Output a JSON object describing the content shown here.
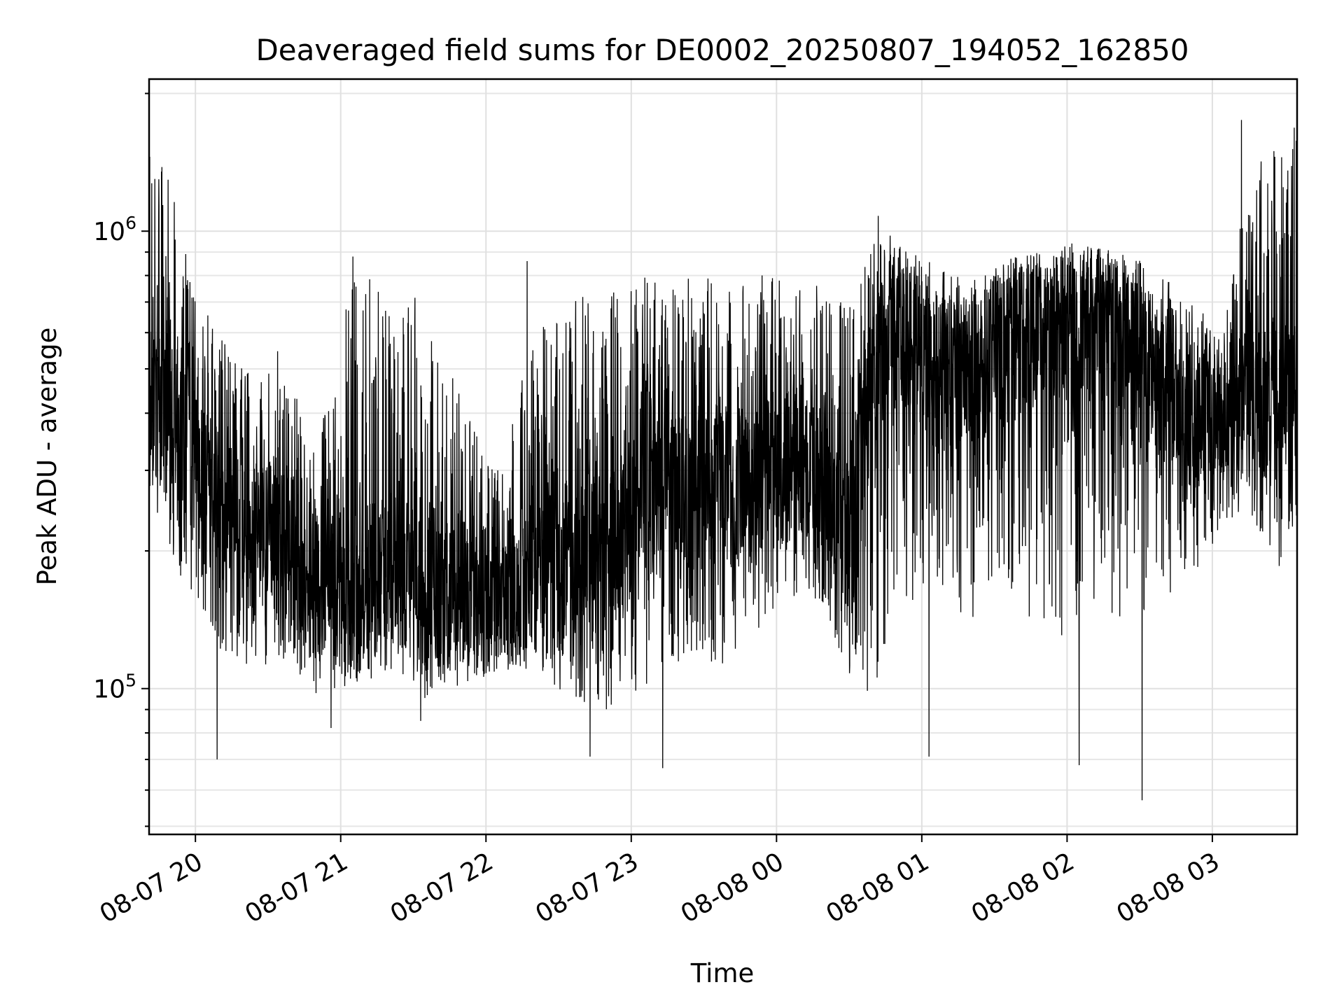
{
  "chart_data": {
    "type": "line",
    "title": "Deaveraged field sums for DE0002_20250807_194052_162850",
    "xlabel": "Time",
    "ylabel": "Peak ADU - average",
    "yscale": "log",
    "ylim": [
      48000,
      2150000
    ],
    "xlim": [
      "2025-08-07 19:40:52",
      "2025-08-08 03:35:00"
    ],
    "grid": true,
    "line_color": "#000000",
    "x_ticks": [
      {
        "t": "2025-08-07 20:00",
        "label": "08-07 20"
      },
      {
        "t": "2025-08-07 21:00",
        "label": "08-07 21"
      },
      {
        "t": "2025-08-07 22:00",
        "label": "08-07 22"
      },
      {
        "t": "2025-08-07 23:00",
        "label": "08-07 23"
      },
      {
        "t": "2025-08-08 00:00",
        "label": "08-08 00"
      },
      {
        "t": "2025-08-08 01:00",
        "label": "08-08 01"
      },
      {
        "t": "2025-08-08 02:00",
        "label": "08-08 02"
      },
      {
        "t": "2025-08-08 03:00",
        "label": "08-08 03"
      }
    ],
    "y_major_ticks": [
      {
        "value": 100000,
        "base": "10",
        "exp": "5"
      },
      {
        "value": 1000000,
        "base": "10",
        "exp": "6"
      }
    ],
    "y_minor_ticks": [
      50000,
      60000,
      70000,
      80000,
      90000,
      200000,
      300000,
      400000,
      500000,
      600000,
      700000,
      800000,
      900000,
      2000000
    ],
    "series": [
      {
        "envelope": [
          {
            "t": "2025-08-07 19:41",
            "low": 280000,
            "high": 1500000,
            "base": 430000
          },
          {
            "t": "2025-08-07 19:50",
            "low": 180000,
            "high": 1300000,
            "base": 400000
          },
          {
            "t": "2025-08-07 20:00",
            "low": 150000,
            "high": 750000,
            "base": 380000
          },
          {
            "t": "2025-08-07 20:10",
            "low": 120000,
            "high": 600000,
            "base": 250000
          },
          {
            "t": "2025-08-07 20:20",
            "low": 110000,
            "high": 500000,
            "base": 210000
          },
          {
            "t": "2025-08-07 20:35",
            "low": 115000,
            "high": 580000,
            "base": 205000
          },
          {
            "t": "2025-08-07 20:50",
            "low": 95000,
            "high": 330000,
            "base": 170000
          },
          {
            "t": "2025-08-07 21:05",
            "low": 100000,
            "high": 800000,
            "base": 160000
          },
          {
            "t": "2025-08-07 21:20",
            "low": 110000,
            "high": 780000,
            "base": 185000
          },
          {
            "t": "2025-08-07 21:35",
            "low": 95000,
            "high": 700000,
            "base": 160000
          },
          {
            "t": "2025-08-07 21:50",
            "low": 100000,
            "high": 430000,
            "base": 160000
          },
          {
            "t": "2025-08-07 22:05",
            "low": 110000,
            "high": 300000,
            "base": 150000
          },
          {
            "t": "2025-08-07 22:20",
            "low": 110000,
            "high": 600000,
            "base": 180000
          },
          {
            "t": "2025-08-07 22:35",
            "low": 95000,
            "high": 720000,
            "base": 175000
          },
          {
            "t": "2025-08-07 22:50",
            "low": 90000,
            "high": 750000,
            "base": 200000
          },
          {
            "t": "2025-08-07 23:05",
            "low": 100000,
            "high": 800000,
            "base": 250000
          },
          {
            "t": "2025-08-07 23:20",
            "low": 110000,
            "high": 820000,
            "base": 280000
          },
          {
            "t": "2025-08-07 23:35",
            "low": 110000,
            "high": 780000,
            "base": 280000
          },
          {
            "t": "2025-08-07 23:50",
            "low": 130000,
            "high": 800000,
            "base": 290000
          },
          {
            "t": "2025-08-08 00:05",
            "low": 160000,
            "high": 820000,
            "base": 300000
          },
          {
            "t": "2025-08-08 00:20",
            "low": 150000,
            "high": 760000,
            "base": 290000
          },
          {
            "t": "2025-08-08 00:30",
            "low": 100000,
            "high": 700000,
            "base": 220000
          },
          {
            "t": "2025-08-08 00:40",
            "low": 95000,
            "high": 950000,
            "base": 500000
          },
          {
            "t": "2025-08-08 00:50",
            "low": 140000,
            "high": 1000000,
            "base": 650000
          },
          {
            "t": "2025-08-08 01:05",
            "low": 160000,
            "high": 850000,
            "base": 480000
          },
          {
            "t": "2025-08-08 01:20",
            "low": 140000,
            "high": 800000,
            "base": 500000
          },
          {
            "t": "2025-08-08 01:35",
            "low": 150000,
            "high": 880000,
            "base": 560000
          },
          {
            "t": "2025-08-08 01:50",
            "low": 130000,
            "high": 900000,
            "base": 620000
          },
          {
            "t": "2025-08-08 02:05",
            "low": 130000,
            "high": 950000,
            "base": 650000
          },
          {
            "t": "2025-08-08 02:20",
            "low": 140000,
            "high": 900000,
            "base": 600000
          },
          {
            "t": "2025-08-08 02:35",
            "low": 150000,
            "high": 850000,
            "base": 500000
          },
          {
            "t": "2025-08-08 02:50",
            "low": 170000,
            "high": 700000,
            "base": 400000
          },
          {
            "t": "2025-08-08 03:05",
            "low": 220000,
            "high": 650000,
            "base": 380000
          },
          {
            "t": "2025-08-08 03:15",
            "low": 250000,
            "high": 1300000,
            "base": 420000
          },
          {
            "t": "2025-08-08 03:25",
            "low": 180000,
            "high": 1600000,
            "base": 400000
          },
          {
            "t": "2025-08-08 03:35",
            "low": 200000,
            "high": 1700000,
            "base": 450000
          }
        ],
        "spikes": [
          {
            "t": "2025-08-07 19:46",
            "value": 1350000
          },
          {
            "t": "2025-08-07 20:09",
            "value": 70000
          },
          {
            "t": "2025-08-07 20:56",
            "value": 82000
          },
          {
            "t": "2025-08-07 21:05",
            "value": 880000
          },
          {
            "t": "2025-08-07 21:33",
            "value": 85000
          },
          {
            "t": "2025-08-07 22:17",
            "value": 860000
          },
          {
            "t": "2025-08-07 22:43",
            "value": 71000
          },
          {
            "t": "2025-08-07 23:13",
            "value": 67000
          },
          {
            "t": "2025-08-08 00:42",
            "value": 1080000
          },
          {
            "t": "2025-08-08 01:03",
            "value": 71000
          },
          {
            "t": "2025-08-08 02:05",
            "value": 68000
          },
          {
            "t": "2025-08-08 02:31",
            "value": 57000
          },
          {
            "t": "2025-08-08 03:12",
            "value": 1750000
          }
        ]
      }
    ]
  }
}
